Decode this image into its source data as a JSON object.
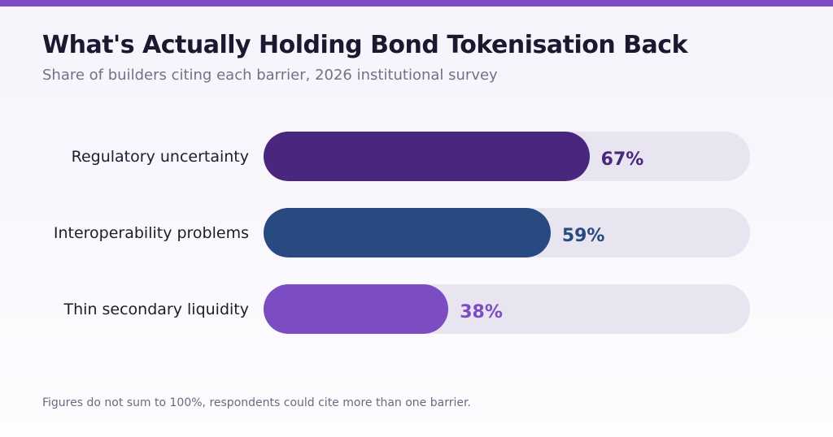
{
  "colors": {
    "accent_stripe": "#7b4cc2",
    "track": "#e8e4f0",
    "regulatory": "#4a277f",
    "interoperability": "#284a80",
    "liquidity": "#7b4cc2"
  },
  "header": {
    "title": "What's Actually Holding Bond Tokenisation Back",
    "subtitle": "Share of builders citing each barrier, 2026 institutional survey"
  },
  "chart_data": {
    "type": "bar",
    "orientation": "horizontal",
    "title": "What's Actually Holding Bond Tokenisation Back",
    "subtitle": "Share of builders citing each barrier, 2026 institutional survey",
    "categories": [
      "Regulatory uncertainty",
      "Interoperability problems",
      "Thin secondary liquidity"
    ],
    "values": [
      67,
      59,
      38
    ],
    "value_labels": [
      "67%",
      "59%",
      "38%"
    ],
    "bar_colors": [
      "#4a277f",
      "#284a80",
      "#7b4cc2"
    ],
    "unit": "%",
    "xlim": [
      0,
      100
    ],
    "grid": false,
    "legend": "none"
  },
  "footnote": "Figures do not sum to 100%, respondents could cite more than one barrier."
}
